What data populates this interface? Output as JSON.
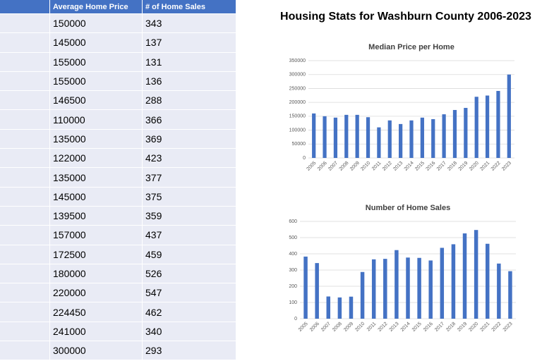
{
  "title": "Housing Stats for Washburn County 2006-2023",
  "table": {
    "header": [
      "Average Home Price",
      "# of Home Sales"
    ],
    "rows": [
      [
        150000,
        343
      ],
      [
        145000,
        137
      ],
      [
        155000,
        131
      ],
      [
        155000,
        136
      ],
      [
        146500,
        288
      ],
      [
        110000,
        366
      ],
      [
        135000,
        369
      ],
      [
        122000,
        423
      ],
      [
        135000,
        377
      ],
      [
        145000,
        375
      ],
      [
        139500,
        359
      ],
      [
        157000,
        437
      ],
      [
        172500,
        459
      ],
      [
        180000,
        526
      ],
      [
        220000,
        547
      ],
      [
        224450,
        462
      ],
      [
        241000,
        340
      ],
      [
        300000,
        293
      ]
    ]
  },
  "chart_data": [
    {
      "type": "bar",
      "title": "Median Price per Home",
      "color": "#4472c4",
      "grid": true,
      "categories": [
        "2005",
        "2006",
        "2007",
        "2008",
        "2009",
        "2010",
        "2011",
        "2012",
        "2013",
        "2014",
        "2015",
        "2016",
        "2017",
        "2018",
        "2019",
        "2020",
        "2021",
        "2022",
        "2023"
      ],
      "values": [
        160000,
        150000,
        145000,
        155000,
        155000,
        146500,
        110000,
        135000,
        122000,
        135000,
        145000,
        139500,
        157000,
        172500,
        180000,
        220000,
        224450,
        241000,
        300000
      ],
      "ylim": [
        0,
        350000
      ],
      "yticks": [
        0,
        50000,
        100000,
        150000,
        200000,
        250000,
        300000,
        350000
      ]
    },
    {
      "type": "bar",
      "title": "Number of Home Sales",
      "color": "#4472c4",
      "grid": true,
      "categories": [
        "2005",
        "2006",
        "2007",
        "2008",
        "2009",
        "2010",
        "2011",
        "2012",
        "2013",
        "2014",
        "2015",
        "2016",
        "2017",
        "2018",
        "2019",
        "2020",
        "2021",
        "2022",
        "2023"
      ],
      "values": [
        383,
        343,
        137,
        131,
        136,
        288,
        366,
        369,
        423,
        377,
        375,
        359,
        437,
        459,
        526,
        547,
        462,
        340,
        293
      ],
      "ylim": [
        0,
        600
      ],
      "yticks": [
        0,
        100,
        200,
        300,
        400,
        500,
        600
      ]
    }
  ]
}
